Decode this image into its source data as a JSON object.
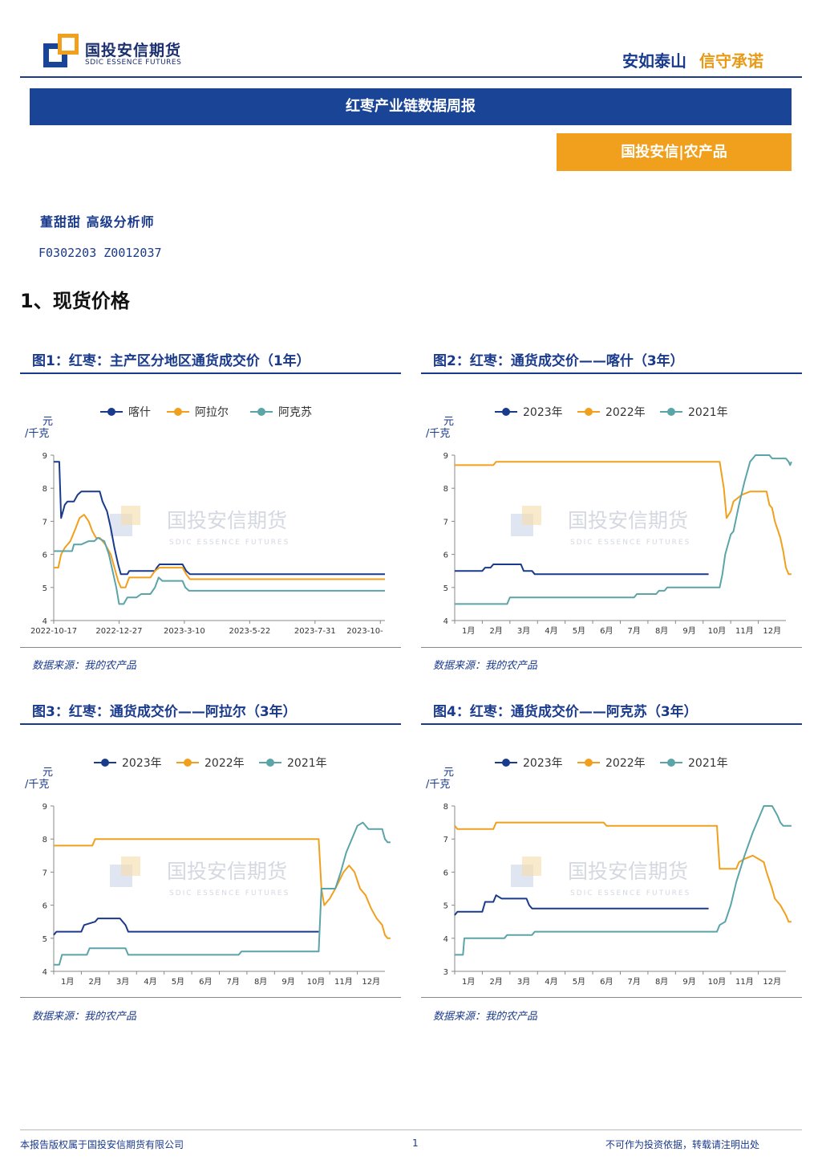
{
  "header": {
    "logo_cn": "国投安信期货",
    "logo_en": "SDIC ESSENCE FUTURES",
    "slogan_a": "安如泰山",
    "slogan_b": "信守承诺"
  },
  "banner": "红枣产业链数据周报",
  "tag": "国投安信|农产品",
  "author": "董甜甜  高级分析师",
  "cert": "F0302203  Z0012037",
  "section": "1、现货价格",
  "watermark": {
    "cn": "国投安信期货",
    "en": "SDIC ESSENCE FUTURES"
  },
  "colors": {
    "navy": "#1a3a8c",
    "orange": "#f0a01c",
    "teal": "#5ba4a8",
    "brand_blue": "#1a4596"
  },
  "figures": [
    {
      "title": "图1：红枣：主产区分地区通货成交价（1年）",
      "source": "数据来源：我的农产品"
    },
    {
      "title": "图2：红枣：通货成交价——喀什（3年）",
      "source": "数据来源：我的农产品"
    },
    {
      "title": "图3：红枣：通货成交价——阿拉尔（3年）",
      "source": "数据来源：我的农产品"
    },
    {
      "title": "图4：红枣：通货成交价——阿克苏（3年）",
      "source": "数据来源：我的农产品"
    }
  ],
  "chart_data": [
    {
      "type": "line",
      "ylabel": "元/千克",
      "ylim": [
        4,
        9
      ],
      "yticks": [
        4,
        5,
        6,
        7,
        8,
        9
      ],
      "xlim": [
        0,
        360
      ],
      "xtick_pos": [
        0,
        71,
        142,
        213,
        284,
        355
      ],
      "xtick_labels": [
        "2022-10-17",
        "2022-12-27",
        "2023-3-10",
        "2023-5-22",
        "2023-7-31",
        "2023-10-"
      ],
      "grid": false,
      "legend": "top",
      "series": [
        {
          "name": "喀什",
          "color": "#1a3a8c",
          "points": [
            [
              0,
              8.8
            ],
            [
              6,
              8.8
            ],
            [
              8,
              7.1
            ],
            [
              12,
              7.5
            ],
            [
              15,
              7.6
            ],
            [
              22,
              7.6
            ],
            [
              26,
              7.8
            ],
            [
              30,
              7.9
            ],
            [
              50,
              7.9
            ],
            [
              53,
              7.6
            ],
            [
              58,
              7.3
            ],
            [
              62,
              6.8
            ],
            [
              66,
              6.2
            ],
            [
              70,
              5.7
            ],
            [
              73,
              5.4
            ],
            [
              80,
              5.4
            ],
            [
              82,
              5.5
            ],
            [
              110,
              5.5
            ],
            [
              112,
              5.6
            ],
            [
              115,
              5.7
            ],
            [
              140,
              5.7
            ],
            [
              144,
              5.5
            ],
            [
              148,
              5.4
            ],
            [
              360,
              5.4
            ]
          ]
        },
        {
          "name": "阿拉尔",
          "color": "#f0a01c",
          "points": [
            [
              0,
              5.6
            ],
            [
              5,
              5.6
            ],
            [
              8,
              6.0
            ],
            [
              12,
              6.2
            ],
            [
              18,
              6.4
            ],
            [
              24,
              6.8
            ],
            [
              28,
              7.1
            ],
            [
              33,
              7.2
            ],
            [
              38,
              7.0
            ],
            [
              42,
              6.7
            ],
            [
              46,
              6.5
            ],
            [
              50,
              6.5
            ],
            [
              56,
              6.3
            ],
            [
              62,
              6.0
            ],
            [
              66,
              5.6
            ],
            [
              70,
              5.2
            ],
            [
              73,
              5.0
            ],
            [
              78,
              5.0
            ],
            [
              82,
              5.3
            ],
            [
              105,
              5.3
            ],
            [
              110,
              5.5
            ],
            [
              115,
              5.6
            ],
            [
              140,
              5.6
            ],
            [
              144,
              5.4
            ],
            [
              148,
              5.25
            ],
            [
              360,
              5.25
            ]
          ]
        },
        {
          "name": "阿克苏",
          "color": "#5ba4a8",
          "points": [
            [
              0,
              6.1
            ],
            [
              20,
              6.1
            ],
            [
              22,
              6.3
            ],
            [
              30,
              6.3
            ],
            [
              38,
              6.4
            ],
            [
              44,
              6.4
            ],
            [
              48,
              6.5
            ],
            [
              55,
              6.4
            ],
            [
              60,
              6.0
            ],
            [
              64,
              5.5
            ],
            [
              68,
              5.0
            ],
            [
              71,
              4.5
            ],
            [
              76,
              4.5
            ],
            [
              80,
              4.7
            ],
            [
              90,
              4.7
            ],
            [
              95,
              4.8
            ],
            [
              105,
              4.8
            ],
            [
              110,
              5.0
            ],
            [
              114,
              5.3
            ],
            [
              118,
              5.2
            ],
            [
              140,
              5.2
            ],
            [
              143,
              5.0
            ],
            [
              147,
              4.9
            ],
            [
              360,
              4.9
            ]
          ]
        }
      ]
    },
    {
      "type": "line",
      "ylabel": "元/千克",
      "ylim": [
        4,
        9
      ],
      "yticks": [
        4,
        5,
        6,
        7,
        8,
        9
      ],
      "xlim": [
        0,
        12
      ],
      "categories": [
        "1月",
        "2月",
        "3月",
        "4月",
        "5月",
        "6月",
        "7月",
        "8月",
        "9月",
        "10月",
        "11月",
        "12月"
      ],
      "grid": false,
      "legend": "top",
      "series": [
        {
          "name": "2023年",
          "color": "#1a3a8c",
          "points": [
            [
              0,
              5.5
            ],
            [
              1,
              5.5
            ],
            [
              1.1,
              5.6
            ],
            [
              1.3,
              5.6
            ],
            [
              1.4,
              5.7
            ],
            [
              2.4,
              5.7
            ],
            [
              2.5,
              5.5
            ],
            [
              2.8,
              5.5
            ],
            [
              2.9,
              5.4
            ],
            [
              9.2,
              5.4
            ]
          ]
        },
        {
          "name": "2022年",
          "color": "#f0a01c",
          "points": [
            [
              0,
              8.7
            ],
            [
              1.4,
              8.7
            ],
            [
              1.5,
              8.8
            ],
            [
              9.6,
              8.8
            ],
            [
              9.75,
              8.0
            ],
            [
              9.85,
              7.1
            ],
            [
              10.0,
              7.3
            ],
            [
              10.1,
              7.6
            ],
            [
              10.4,
              7.8
            ],
            [
              10.7,
              7.9
            ],
            [
              11.3,
              7.9
            ],
            [
              11.4,
              7.5
            ],
            [
              11.5,
              7.4
            ],
            [
              11.6,
              7.0
            ],
            [
              11.8,
              6.5
            ],
            [
              11.9,
              6.1
            ],
            [
              12.0,
              5.6
            ],
            [
              12.1,
              5.4
            ],
            [
              12.2,
              5.4
            ]
          ]
        },
        {
          "name": "2021年",
          "color": "#5ba4a8",
          "points": [
            [
              0,
              4.5
            ],
            [
              1.9,
              4.5
            ],
            [
              2.0,
              4.7
            ],
            [
              6.5,
              4.7
            ],
            [
              6.6,
              4.8
            ],
            [
              7.3,
              4.8
            ],
            [
              7.4,
              4.9
            ],
            [
              7.6,
              4.9
            ],
            [
              7.7,
              5.0
            ],
            [
              9.6,
              5.0
            ],
            [
              9.7,
              5.4
            ],
            [
              9.8,
              6.0
            ],
            [
              10.0,
              6.6
            ],
            [
              10.1,
              6.7
            ],
            [
              10.3,
              7.5
            ],
            [
              10.5,
              8.2
            ],
            [
              10.7,
              8.8
            ],
            [
              10.9,
              9.0
            ],
            [
              11.4,
              9.0
            ],
            [
              11.5,
              8.9
            ],
            [
              12.0,
              8.9
            ],
            [
              12.1,
              8.8
            ],
            [
              12.15,
              8.7
            ],
            [
              12.2,
              8.8
            ]
          ]
        }
      ]
    },
    {
      "type": "line",
      "ylabel": "元/千克",
      "ylim": [
        4,
        9
      ],
      "yticks": [
        4,
        5,
        6,
        7,
        8,
        9
      ],
      "xlim": [
        0,
        12
      ],
      "categories": [
        "1月",
        "2月",
        "3月",
        "4月",
        "5月",
        "6月",
        "7月",
        "8月",
        "9月",
        "10月",
        "11月",
        "12月"
      ],
      "grid": false,
      "legend": "top",
      "series": [
        {
          "name": "2023年",
          "color": "#1a3a8c",
          "points": [
            [
              0,
              5.1
            ],
            [
              0.1,
              5.2
            ],
            [
              1,
              5.2
            ],
            [
              1.1,
              5.4
            ],
            [
              1.5,
              5.5
            ],
            [
              1.6,
              5.6
            ],
            [
              2.4,
              5.6
            ],
            [
              2.6,
              5.4
            ],
            [
              2.7,
              5.2
            ],
            [
              9.6,
              5.2
            ]
          ]
        },
        {
          "name": "2022年",
          "color": "#f0a01c",
          "points": [
            [
              0,
              7.8
            ],
            [
              1.4,
              7.8
            ],
            [
              1.5,
              8.0
            ],
            [
              9.6,
              8.0
            ],
            [
              9.7,
              6.5
            ],
            [
              9.8,
              6.0
            ],
            [
              10.0,
              6.2
            ],
            [
              10.2,
              6.5
            ],
            [
              10.5,
              7.0
            ],
            [
              10.7,
              7.2
            ],
            [
              10.9,
              7.0
            ],
            [
              11.1,
              6.5
            ],
            [
              11.3,
              6.3
            ],
            [
              11.5,
              5.9
            ],
            [
              11.7,
              5.6
            ],
            [
              11.9,
              5.4
            ],
            [
              12.0,
              5.1
            ],
            [
              12.1,
              5.0
            ],
            [
              12.2,
              5.0
            ]
          ]
        },
        {
          "name": "2021年",
          "color": "#5ba4a8",
          "points": [
            [
              0,
              4.2
            ],
            [
              0.2,
              4.2
            ],
            [
              0.3,
              4.5
            ],
            [
              1.2,
              4.5
            ],
            [
              1.3,
              4.7
            ],
            [
              2.6,
              4.7
            ],
            [
              2.7,
              4.5
            ],
            [
              6.7,
              4.5
            ],
            [
              6.8,
              4.6
            ],
            [
              9.6,
              4.6
            ],
            [
              9.7,
              6.5
            ],
            [
              10.2,
              6.5
            ],
            [
              10.4,
              7.0
            ],
            [
              10.6,
              7.6
            ],
            [
              10.8,
              8.0
            ],
            [
              11.0,
              8.4
            ],
            [
              11.2,
              8.5
            ],
            [
              11.4,
              8.3
            ],
            [
              11.9,
              8.3
            ],
            [
              12.0,
              8.0
            ],
            [
              12.1,
              7.9
            ],
            [
              12.2,
              7.9
            ]
          ]
        }
      ]
    },
    {
      "type": "line",
      "ylabel": "元/千克",
      "ylim": [
        3,
        8
      ],
      "yticks": [
        3,
        4,
        5,
        6,
        7,
        8
      ],
      "xlim": [
        0,
        12
      ],
      "categories": [
        "1月",
        "2月",
        "3月",
        "4月",
        "5月",
        "6月",
        "7月",
        "8月",
        "9月",
        "10月",
        "11月",
        "12月"
      ],
      "grid": false,
      "legend": "top",
      "series": [
        {
          "name": "2023年",
          "color": "#1a3a8c",
          "points": [
            [
              0,
              4.7
            ],
            [
              0.1,
              4.8
            ],
            [
              1,
              4.8
            ],
            [
              1.1,
              5.1
            ],
            [
              1.4,
              5.1
            ],
            [
              1.5,
              5.3
            ],
            [
              1.7,
              5.2
            ],
            [
              2.6,
              5.2
            ],
            [
              2.7,
              5.0
            ],
            [
              2.8,
              4.9
            ],
            [
              9.2,
              4.9
            ]
          ]
        },
        {
          "name": "2022年",
          "color": "#f0a01c",
          "points": [
            [
              0,
              7.4
            ],
            [
              0.1,
              7.3
            ],
            [
              1.4,
              7.3
            ],
            [
              1.5,
              7.5
            ],
            [
              5.4,
              7.5
            ],
            [
              5.5,
              7.4
            ],
            [
              9.5,
              7.4
            ],
            [
              9.6,
              6.1
            ],
            [
              10.2,
              6.1
            ],
            [
              10.3,
              6.3
            ],
            [
              10.5,
              6.4
            ],
            [
              10.8,
              6.5
            ],
            [
              11.0,
              6.4
            ],
            [
              11.2,
              6.3
            ],
            [
              11.3,
              6.0
            ],
            [
              11.5,
              5.5
            ],
            [
              11.6,
              5.2
            ],
            [
              11.8,
              5.0
            ],
            [
              12.0,
              4.7
            ],
            [
              12.1,
              4.5
            ],
            [
              12.2,
              4.5
            ]
          ]
        },
        {
          "name": "2021年",
          "color": "#5ba4a8",
          "points": [
            [
              0,
              3.5
            ],
            [
              0.3,
              3.5
            ],
            [
              0.35,
              4.0
            ],
            [
              1.8,
              4.0
            ],
            [
              1.9,
              4.1
            ],
            [
              2.8,
              4.1
            ],
            [
              2.9,
              4.2
            ],
            [
              9.5,
              4.2
            ],
            [
              9.6,
              4.4
            ],
            [
              9.8,
              4.5
            ],
            [
              10.0,
              5.0
            ],
            [
              10.2,
              5.7
            ],
            [
              10.5,
              6.5
            ],
            [
              10.8,
              7.2
            ],
            [
              11.0,
              7.6
            ],
            [
              11.2,
              8.0
            ],
            [
              11.5,
              8.0
            ],
            [
              11.7,
              7.7
            ],
            [
              11.8,
              7.5
            ],
            [
              11.9,
              7.4
            ],
            [
              12.2,
              7.4
            ]
          ]
        }
      ]
    }
  ],
  "footer": {
    "left": "本报告版权属于国投安信期货有限公司",
    "page": "1",
    "right": "不可作为投资依据，转载请注明出处"
  }
}
